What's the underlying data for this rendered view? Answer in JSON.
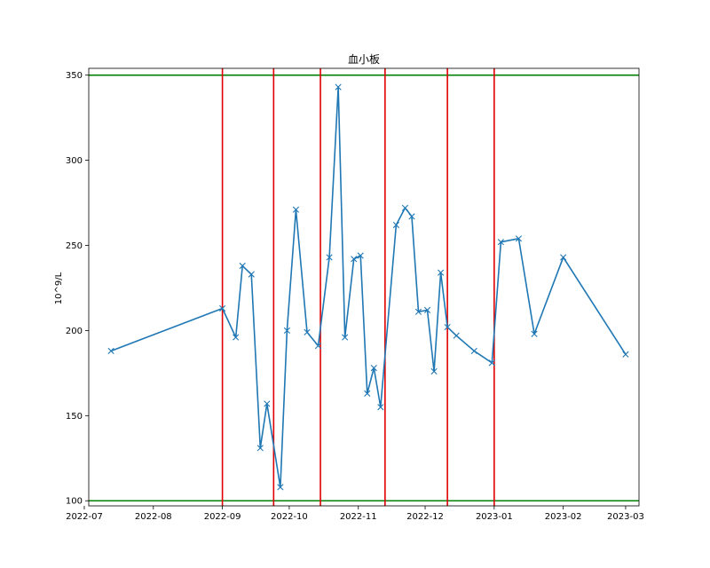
{
  "chart_data": {
    "type": "line",
    "title": "血小板",
    "ylabel": "10^9/L",
    "xlabel": "",
    "ylim": [
      97,
      354
    ],
    "xlim": [
      "2022-07-03",
      "2023-03-07"
    ],
    "x_ticks": [
      "2022-07-01",
      "2022-08-01",
      "2022-09-01",
      "2022-10-01",
      "2022-11-01",
      "2022-12-01",
      "2023-01-01",
      "2023-02-01",
      "2023-03-01"
    ],
    "x_tick_labels": [
      "2022-07",
      "2022-08",
      "2022-09",
      "2022-10",
      "2022-11",
      "2022-12",
      "2023-01",
      "2023-02",
      "2023-03"
    ],
    "y_ticks": [
      100,
      150,
      200,
      250,
      300,
      350
    ],
    "y_tick_labels": [
      "100",
      "150",
      "200",
      "250",
      "300",
      "350"
    ],
    "grid": false,
    "marker": "x",
    "series": [
      {
        "color": "#1f77b4",
        "points": [
          {
            "x": "2022-07-13",
            "y": 188
          },
          {
            "x": "2022-09-01",
            "y": 213
          },
          {
            "x": "2022-09-07",
            "y": 196
          },
          {
            "x": "2022-09-10",
            "y": 238
          },
          {
            "x": "2022-09-14",
            "y": 233
          },
          {
            "x": "2022-09-18",
            "y": 131
          },
          {
            "x": "2022-09-21",
            "y": 157
          },
          {
            "x": "2022-09-27",
            "y": 108
          },
          {
            "x": "2022-09-30",
            "y": 200
          },
          {
            "x": "2022-10-04",
            "y": 271
          },
          {
            "x": "2022-10-09",
            "y": 199
          },
          {
            "x": "2022-10-14",
            "y": 191
          },
          {
            "x": "2022-10-19",
            "y": 243
          },
          {
            "x": "2022-10-23",
            "y": 343
          },
          {
            "x": "2022-10-26",
            "y": 196
          },
          {
            "x": "2022-10-30",
            "y": 242
          },
          {
            "x": "2022-11-02",
            "y": 244
          },
          {
            "x": "2022-11-05",
            "y": 163
          },
          {
            "x": "2022-11-08",
            "y": 178
          },
          {
            "x": "2022-11-11",
            "y": 155
          },
          {
            "x": "2022-11-18",
            "y": 262
          },
          {
            "x": "2022-11-22",
            "y": 272
          },
          {
            "x": "2022-11-25",
            "y": 267
          },
          {
            "x": "2022-11-28",
            "y": 211
          },
          {
            "x": "2022-12-02",
            "y": 212
          },
          {
            "x": "2022-12-05",
            "y": 176
          },
          {
            "x": "2022-12-08",
            "y": 234
          },
          {
            "x": "2022-12-11",
            "y": 202
          },
          {
            "x": "2022-12-15",
            "y": 197
          },
          {
            "x": "2022-12-23",
            "y": 188
          },
          {
            "x": "2022-12-31",
            "y": 181
          },
          {
            "x": "2023-01-04",
            "y": 252
          },
          {
            "x": "2023-01-12",
            "y": 254
          },
          {
            "x": "2023-01-19",
            "y": 198
          },
          {
            "x": "2023-02-01",
            "y": 243
          },
          {
            "x": "2023-03-01",
            "y": 186
          }
        ]
      }
    ],
    "reference_lines_horizontal": [
      {
        "y": 350,
        "color": "#008000"
      },
      {
        "y": 100,
        "color": "#008000"
      }
    ],
    "reference_lines_vertical": [
      {
        "x": "2022-09-01",
        "color": "#e00000"
      },
      {
        "x": "2022-09-24",
        "color": "#e00000"
      },
      {
        "x": "2022-10-15",
        "color": "#e00000"
      },
      {
        "x": "2022-11-13",
        "color": "#e00000"
      },
      {
        "x": "2022-12-11",
        "color": "#e00000"
      },
      {
        "x": "2023-01-01",
        "color": "#e00000"
      }
    ]
  }
}
